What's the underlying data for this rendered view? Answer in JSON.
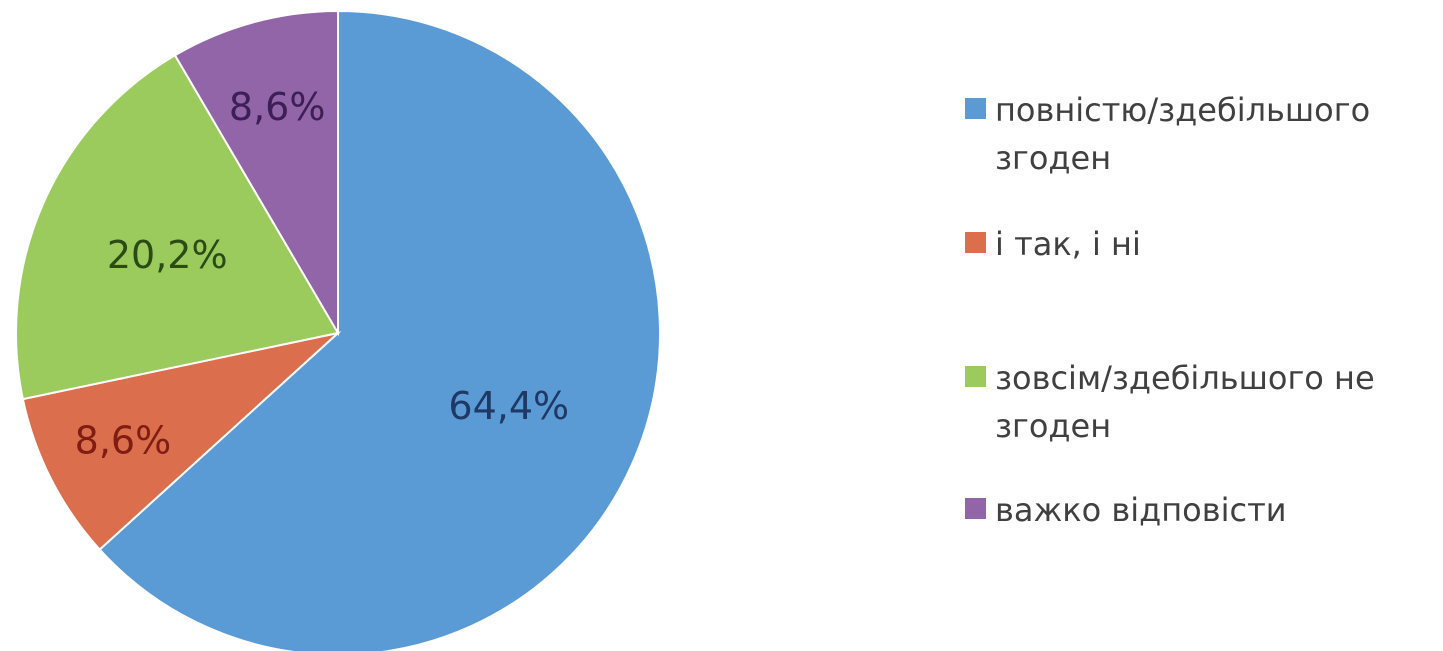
{
  "chart_data": {
    "type": "pie",
    "title": "",
    "categories": [
      "повністю/здебільшого згоден",
      "і так, і ні",
      "зовсім/здебільшого не згоден",
      "важко відповісти"
    ],
    "values": [
      64.4,
      8.6,
      20.2,
      8.6
    ],
    "data_labels": [
      "64,4%",
      "8,6%",
      "20,2%",
      "8,6%"
    ],
    "colors": [
      "#5B9BD5",
      "#DB6E4D",
      "#9BCB5D",
      "#9165A8"
    ],
    "label_colors": [
      "#1F3864",
      "#7F1D12",
      "#2C4A15",
      "#3B1F55"
    ],
    "start_angle_deg": 0,
    "direction": "clockwise",
    "legend_position": "right"
  }
}
